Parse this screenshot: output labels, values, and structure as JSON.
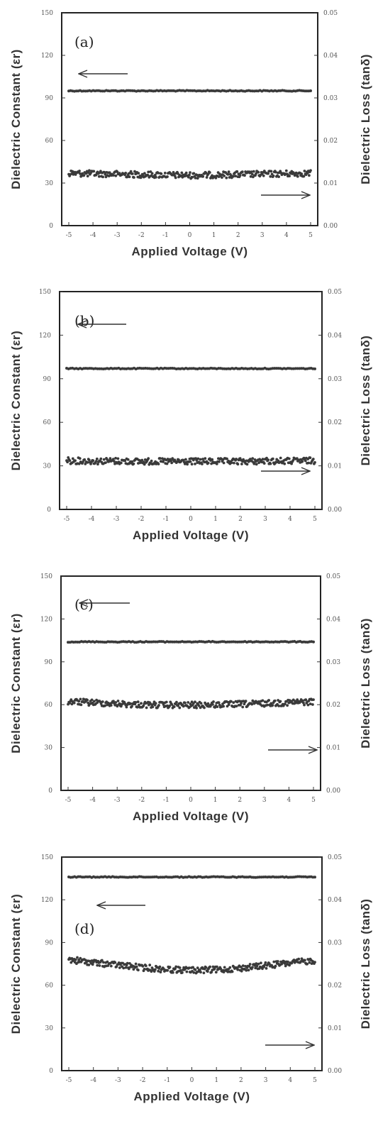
{
  "chart_data": [
    {
      "type": "scatter",
      "panel_label": "(a)",
      "xlabel": "Applied Voltage (V)",
      "ylabel_left": "Dielectric Constant (εr)",
      "ylabel_right": "Dielectric Loss (tanδ)",
      "xlim": [
        -5,
        5
      ],
      "ylim_left": [
        0,
        150
      ],
      "ylim_right": [
        0,
        0.05
      ],
      "x_ticks": [
        "-5",
        "-4",
        "-3",
        "-2",
        "-1",
        "0",
        "1",
        "2",
        "3",
        "4",
        "5"
      ],
      "y_ticks_left": [
        "0",
        "30",
        "60",
        "90",
        "120",
        "150"
      ],
      "y_ticks_right": [
        "0.00",
        "0.01",
        "0.02",
        "0.03",
        "0.04",
        "0.05"
      ],
      "series": [
        {
          "axis": "left",
          "x": [
            -5,
            -4,
            -3,
            -2,
            -1,
            0,
            1,
            2,
            3,
            4,
            5
          ],
          "values": [
            95,
            95,
            95,
            95,
            95,
            95,
            95,
            95,
            95,
            95,
            95
          ]
        },
        {
          "axis": "right",
          "x": [
            -5,
            -4,
            -3,
            -2,
            -1,
            0,
            1,
            2,
            3,
            4,
            5
          ],
          "values": [
            0.0123,
            0.0122,
            0.0121,
            0.012,
            0.0119,
            0.0118,
            0.0119,
            0.012,
            0.0121,
            0.0122,
            0.0123
          ]
        }
      ]
    },
    {
      "type": "scatter",
      "panel_label": "(b)",
      "xlabel": "Applied Voltage (V)",
      "ylabel_left": "Dielectric Constant (εr)",
      "ylabel_right": "Dielectric Loss (tanδ)",
      "xlim": [
        -5,
        5
      ],
      "ylim_left": [
        0,
        150
      ],
      "ylim_right": [
        0,
        0.05
      ],
      "x_ticks": [
        "-5",
        "-4",
        "-3",
        "-2",
        "-1",
        "0",
        "1",
        "2",
        "3",
        "4",
        "5"
      ],
      "y_ticks_left": [
        "0",
        "30",
        "60",
        "90",
        "120",
        "150"
      ],
      "y_ticks_right": [
        "0.00",
        "0.01",
        "0.02",
        "0.03",
        "0.04",
        "0.05"
      ],
      "series": [
        {
          "axis": "left",
          "x": [
            -5,
            -4,
            -3,
            -2,
            -1,
            0,
            1,
            2,
            3,
            4,
            5
          ],
          "values": [
            97,
            97,
            97,
            97,
            97,
            97,
            97,
            97,
            97,
            97,
            97
          ]
        },
        {
          "axis": "right",
          "x": [
            -5,
            -4,
            -3,
            -2,
            -1,
            0,
            1,
            2,
            3,
            4,
            5
          ],
          "values": [
            0.0112,
            0.0111,
            0.0111,
            0.011,
            0.011,
            0.011,
            0.011,
            0.011,
            0.0111,
            0.0111,
            0.0112
          ]
        }
      ]
    },
    {
      "type": "scatter",
      "panel_label": "(c)",
      "xlabel": "Applied Voltage (V)",
      "ylabel_left": "Dielectric Constant (εr)",
      "ylabel_right": "Dielectric Loss (tanδ)",
      "xlim": [
        -5,
        5
      ],
      "ylim_left": [
        0,
        150
      ],
      "ylim_right": [
        0,
        0.05
      ],
      "x_ticks": [
        "-5",
        "-4",
        "-3",
        "-2",
        "-1",
        "0",
        "1",
        "2",
        "3",
        "4",
        "5"
      ],
      "y_ticks_left": [
        "0",
        "30",
        "60",
        "90",
        "120",
        "150"
      ],
      "y_ticks_right": [
        "0.00",
        "0.01",
        "0.02",
        "0.03",
        "0.04",
        "0.05"
      ],
      "series": [
        {
          "axis": "left",
          "x": [
            -5,
            -4,
            -3,
            -2,
            -1,
            0,
            1,
            2,
            3,
            4,
            5
          ],
          "values": [
            104,
            104,
            104,
            104,
            104,
            104,
            104,
            104,
            104,
            104,
            104
          ]
        },
        {
          "axis": "right",
          "x": [
            -5,
            -4,
            -3,
            -2,
            -1,
            0,
            1,
            2,
            3,
            4,
            5
          ],
          "values": [
            0.0207,
            0.0205,
            0.0202,
            0.02,
            0.0199,
            0.0199,
            0.02,
            0.0201,
            0.0203,
            0.0205,
            0.0207
          ]
        }
      ]
    },
    {
      "type": "scatter",
      "panel_label": "(d)",
      "xlabel": "Applied Voltage (V)",
      "ylabel_left": "Dielectric Constant (εr)",
      "ylabel_right": "Dielectric Loss (tanδ)",
      "xlim": [
        -5,
        5
      ],
      "ylim_left": [
        0,
        150
      ],
      "ylim_right": [
        0,
        0.05
      ],
      "x_ticks": [
        "-5",
        "-4",
        "-3",
        "-2",
        "-1",
        "0",
        "1",
        "2",
        "3",
        "4",
        "5"
      ],
      "y_ticks_left": [
        "0",
        "30",
        "60",
        "90",
        "120",
        "150"
      ],
      "y_ticks_right": [
        "0.00",
        "0.01",
        "0.02",
        "0.03",
        "0.04",
        "0.05"
      ],
      "series": [
        {
          "axis": "left",
          "x": [
            -5,
            -4,
            -3,
            -2,
            -1,
            0,
            1,
            2,
            3,
            4,
            5
          ],
          "values": [
            136,
            136,
            136,
            136,
            136,
            136,
            136,
            136,
            136,
            136,
            136
          ]
        },
        {
          "axis": "right",
          "x": [
            -5,
            -4,
            -3,
            -2,
            -1,
            0,
            1,
            2,
            3,
            4,
            5
          ],
          "values": [
            0.026,
            0.0253,
            0.0247,
            0.0241,
            0.0237,
            0.0235,
            0.0236,
            0.024,
            0.0246,
            0.0252,
            0.0258
          ]
        }
      ]
    }
  ],
  "colors": {
    "data": "#3a3a3a",
    "axis": "#222222",
    "text": "#333333"
  }
}
